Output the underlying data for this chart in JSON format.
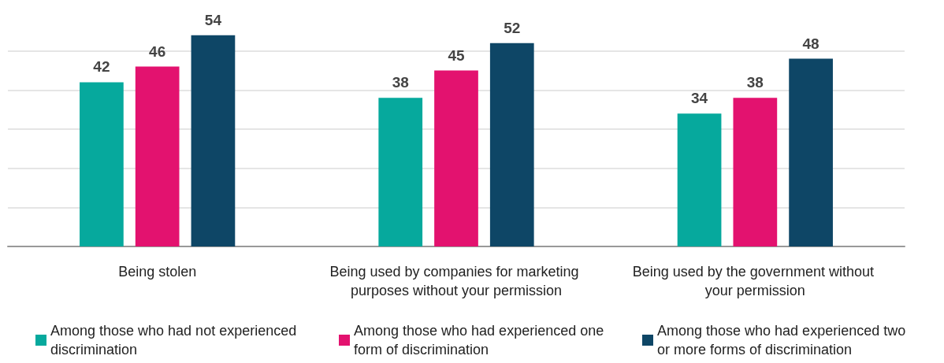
{
  "chart_data": {
    "type": "bar",
    "categories": [
      "Being stolen",
      "Being used by companies for marketing purposes without your permission",
      "Being used by the government without your permission"
    ],
    "series": [
      {
        "name": "Among those who had not experienced discrimination",
        "color": "#06a99d",
        "values": [
          42,
          38,
          34
        ]
      },
      {
        "name": "Among those who had experienced one form of discrimination",
        "color": "#e3126f",
        "values": [
          46,
          45,
          38
        ]
      },
      {
        "name": "Among those who had experienced two or more forms of discrimination",
        "color": "#0e4666",
        "values": [
          54,
          52,
          48
        ]
      }
    ],
    "yticks": [
      {
        "value": 0,
        "label": null
      },
      {
        "value": 10,
        "label": null
      },
      {
        "value": 20,
        "label": null
      },
      {
        "value": 30,
        "label": null
      },
      {
        "value": 40,
        "label": null
      },
      {
        "value": 50,
        "label": null
      }
    ],
    "tick_labels": "x",
    "grid": "y",
    "data_labels": true,
    "legend": "bottom"
  }
}
